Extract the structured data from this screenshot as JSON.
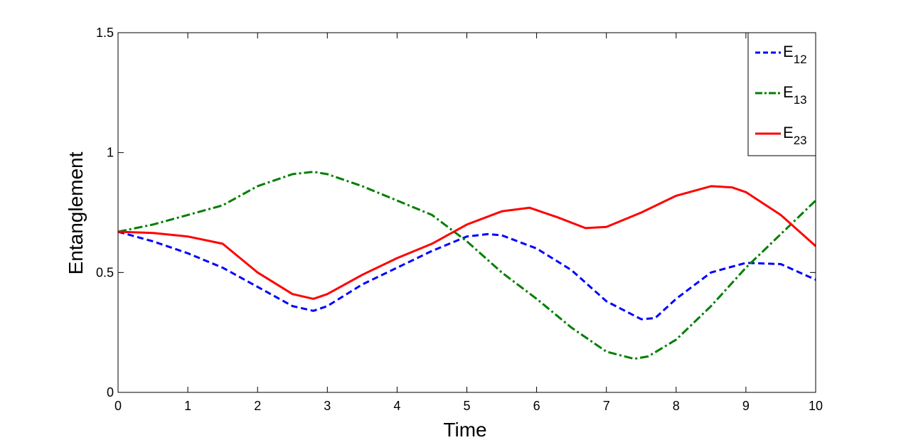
{
  "chart_data": {
    "type": "line",
    "xlabel": "Time",
    "ylabel": "Entanglement",
    "xlim": [
      0,
      10
    ],
    "ylim": [
      0,
      1.5
    ],
    "xticks": [
      0,
      1,
      2,
      3,
      4,
      5,
      6,
      7,
      8,
      9,
      10
    ],
    "yticks": [
      0,
      0.5,
      1,
      1.5
    ],
    "xtick_labels": [
      "0",
      "1",
      "2",
      "3",
      "4",
      "5",
      "6",
      "7",
      "8",
      "9",
      "10"
    ],
    "ytick_labels": [
      "0",
      "0.5",
      "1",
      "1.5"
    ],
    "grid": false,
    "legend_position": "top-right",
    "series": [
      {
        "name_base": "E",
        "name_sub": "12",
        "color": "#0000ff",
        "style": "dashed",
        "x": [
          0,
          0.5,
          1,
          1.5,
          2,
          2.5,
          2.8,
          3,
          3.5,
          4,
          4.5,
          5,
          5.3,
          5.5,
          6,
          6.5,
          7,
          7.5,
          7.7,
          8,
          8.5,
          9,
          9.5,
          10
        ],
        "y": [
          0.67,
          0.63,
          0.58,
          0.52,
          0.44,
          0.36,
          0.34,
          0.36,
          0.45,
          0.52,
          0.59,
          0.65,
          0.66,
          0.655,
          0.6,
          0.51,
          0.38,
          0.305,
          0.31,
          0.39,
          0.5,
          0.54,
          0.535,
          0.47
        ]
      },
      {
        "name_base": "E",
        "name_sub": "13",
        "color": "#007f00",
        "style": "dashdot",
        "x": [
          0,
          0.5,
          1,
          1.5,
          2,
          2.5,
          2.8,
          3,
          3.5,
          4,
          4.5,
          5,
          5.5,
          6,
          6.5,
          7,
          7.4,
          7.6,
          8,
          8.5,
          9,
          9.5,
          10
        ],
        "y": [
          0.67,
          0.7,
          0.74,
          0.78,
          0.86,
          0.91,
          0.92,
          0.91,
          0.86,
          0.8,
          0.74,
          0.63,
          0.5,
          0.39,
          0.27,
          0.17,
          0.14,
          0.15,
          0.22,
          0.36,
          0.52,
          0.66,
          0.8
        ]
      },
      {
        "name_base": "E",
        "name_sub": "23",
        "color": "#ff0000",
        "style": "solid",
        "x": [
          0,
          0.5,
          1,
          1.5,
          2,
          2.5,
          2.8,
          3,
          3.5,
          4,
          4.5,
          5,
          5.5,
          5.9,
          6.3,
          6.7,
          7,
          7.5,
          8,
          8.5,
          8.8,
          9,
          9.5,
          10
        ],
        "y": [
          0.67,
          0.665,
          0.65,
          0.62,
          0.5,
          0.41,
          0.39,
          0.41,
          0.49,
          0.56,
          0.62,
          0.7,
          0.755,
          0.77,
          0.73,
          0.685,
          0.69,
          0.75,
          0.82,
          0.86,
          0.855,
          0.835,
          0.74,
          0.61
        ]
      }
    ]
  }
}
